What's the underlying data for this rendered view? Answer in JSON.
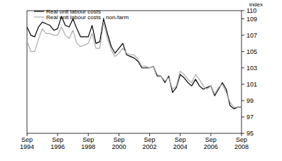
{
  "chart_data": {
    "type": "line",
    "y_label": "index",
    "categories": [
      "Sep 1994",
      null,
      null,
      null,
      null,
      null,
      null,
      null,
      "Sep 1996",
      null,
      null,
      null,
      null,
      null,
      null,
      null,
      "Sep 1998",
      null,
      null,
      null,
      null,
      null,
      null,
      null,
      "Sep 2000",
      null,
      null,
      null,
      null,
      null,
      null,
      null,
      "Sep 2002",
      null,
      null,
      null,
      null,
      null,
      null,
      null,
      "Sep 2004",
      null,
      null,
      null,
      null,
      null,
      null,
      null,
      "Sep 2006",
      null,
      null,
      null,
      null,
      null,
      null,
      null,
      "Sep 2008"
    ],
    "series": [
      {
        "name": "Real unit labour costs",
        "color": "#000000",
        "values": [
          108.0,
          107.0,
          106.8,
          108.0,
          108.6,
          108.4,
          108.2,
          107.6,
          107.8,
          109.3,
          108.2,
          108.0,
          109.0,
          107.8,
          106.8,
          106.8,
          106.8,
          108.2,
          106.0,
          106.2,
          109.0,
          107.2,
          105.6,
          104.8,
          105.4,
          106.0,
          104.6,
          104.4,
          104.2,
          103.8,
          103.0,
          103.0,
          103.0,
          103.2,
          102.0,
          102.0,
          101.2,
          102.0,
          100.0,
          100.6,
          102.2,
          101.8,
          101.2,
          100.8,
          101.6,
          100.8,
          100.4,
          100.6,
          100.8,
          99.6,
          100.4,
          101.2,
          100.4,
          98.4,
          98.0,
          98.2,
          98.2
        ]
      },
      {
        "name": "Real unit labour costs - non-farm",
        "color": "#aaaaaa",
        "values": [
          106.3,
          105.0,
          105.0,
          106.5,
          107.8,
          107.2,
          107.2,
          107.0,
          107.0,
          108.0,
          107.0,
          106.6,
          107.6,
          106.0,
          105.6,
          105.8,
          106.0,
          107.2,
          105.4,
          105.4,
          108.6,
          106.6,
          105.2,
          104.4,
          104.8,
          105.4,
          104.8,
          104.6,
          104.6,
          104.0,
          103.2,
          103.2,
          103.0,
          103.2,
          102.2,
          102.0,
          101.4,
          101.8,
          100.4,
          100.8,
          102.6,
          102.2,
          101.6,
          101.2,
          102.2,
          101.6,
          100.8,
          100.4,
          100.8,
          99.8,
          100.6,
          101.0,
          100.0,
          98.8,
          98.2,
          98.2,
          98.2
        ]
      }
    ],
    "ylim": [
      95,
      110
    ],
    "yticks": [
      95,
      97,
      99,
      101,
      103,
      105,
      107,
      109,
      110
    ],
    "grid": false,
    "legend": "top-left"
  }
}
